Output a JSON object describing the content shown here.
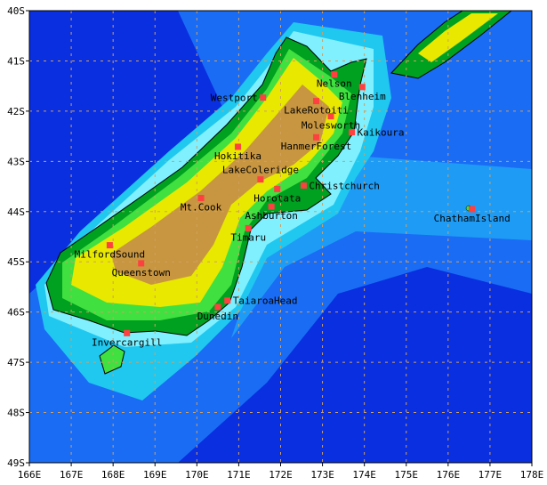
{
  "map": {
    "extent": {
      "lon": [
        166,
        178
      ],
      "lat": [
        -49,
        -40
      ]
    },
    "x_ticks": [
      "166E",
      "167E",
      "168E",
      "169E",
      "170E",
      "171E",
      "172E",
      "173E",
      "174E",
      "175E",
      "176E",
      "177E",
      "178E"
    ],
    "y_ticks": [
      "40S",
      "41S",
      "42S",
      "43S",
      "44S",
      "45S",
      "46S",
      "47S",
      "48S",
      "49S"
    ],
    "grid": true,
    "colors": {
      "deep_ocean": "#0a2fe0",
      "ocean": "#1a6cf5",
      "shelf": "#20c8f0",
      "shallow": "#80f0ff",
      "lowland": "#00a020",
      "plain": "#40e040",
      "hills": "#e8e800",
      "mountains": "#c89640",
      "marker": "#ff4040",
      "grid": "#d0a060"
    },
    "stations": [
      {
        "name": "Nelson",
        "lon": 173.28,
        "lat": -41.27
      },
      {
        "name": "Blenheim",
        "lon": 173.95,
        "lat": -41.52
      },
      {
        "name": "Westport",
        "lon": 171.58,
        "lat": -41.73
      },
      {
        "name": "LakeRotoiti",
        "lon": 172.85,
        "lat": -41.8
      },
      {
        "name": "Molesworth",
        "lon": 173.2,
        "lat": -42.1
      },
      {
        "name": "HanmerForest",
        "lon": 172.85,
        "lat": -42.52
      },
      {
        "name": "Kaikoura",
        "lon": 173.7,
        "lat": -42.42
      },
      {
        "name": "Hokitika",
        "lon": 170.98,
        "lat": -42.71
      },
      {
        "name": "LakeColeridge",
        "lon": 171.52,
        "lat": -43.36
      },
      {
        "name": "Horotata",
        "lon": 171.92,
        "lat": -43.55
      },
      {
        "name": "Christchurch",
        "lon": 172.55,
        "lat": -43.48
      },
      {
        "name": "Ashburton",
        "lon": 171.78,
        "lat": -43.9
      },
      {
        "name": "Timaru",
        "lon": 171.23,
        "lat": -44.33
      },
      {
        "name": "Mt.Cook",
        "lon": 170.1,
        "lat": -43.73
      },
      {
        "name": "MilfordSound",
        "lon": 167.92,
        "lat": -44.67
      },
      {
        "name": "Queenstown",
        "lon": 168.67,
        "lat": -45.03
      },
      {
        "name": "TaiaroaHead",
        "lon": 170.73,
        "lat": -45.77
      },
      {
        "name": "Dunedin",
        "lon": 170.5,
        "lat": -45.9
      },
      {
        "name": "Invercargill",
        "lon": 168.33,
        "lat": -46.42
      },
      {
        "name": "ChathamIsland",
        "lon": 176.57,
        "lat": -43.95
      }
    ]
  }
}
